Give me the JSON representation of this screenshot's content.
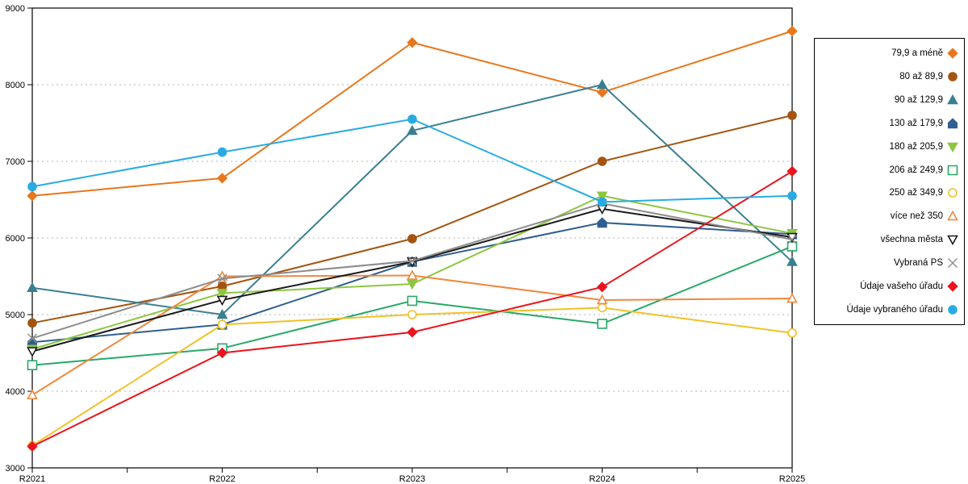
{
  "chart_data": {
    "type": "line",
    "title": "",
    "xlabel": "",
    "ylabel": "",
    "x_categories": [
      "R2021",
      "R2022",
      "R2023",
      "R2024",
      "R2025"
    ],
    "ylim": [
      3000,
      9000
    ],
    "y_ticks": [
      3000,
      4000,
      5000,
      6000,
      7000,
      8000,
      9000
    ],
    "grid": "horizontal-dashed",
    "grid_color": "#b5b5b5",
    "axis_color": "#000000",
    "legend_position": "right-outside",
    "series": [
      {
        "name": "79,9 a méně",
        "color": "#e8761b",
        "marker": "diamond",
        "filled": true,
        "values": [
          6550,
          6780,
          8550,
          7900,
          8700
        ]
      },
      {
        "name": "80 až 89,9",
        "color": "#a3540e",
        "marker": "circle",
        "filled": true,
        "values": [
          4890,
          5370,
          5990,
          7000,
          7600
        ]
      },
      {
        "name": "90 až 129,9",
        "color": "#3a7f91",
        "marker": "triangle-up",
        "filled": true,
        "values": [
          5350,
          5000,
          7400,
          8000,
          5690
        ]
      },
      {
        "name": "130 až 179,9",
        "color": "#2f5e8f",
        "marker": "pentagon",
        "filled": true,
        "values": [
          4640,
          4870,
          5690,
          6200,
          6050
        ]
      },
      {
        "name": "180 až 205,9",
        "color": "#8dc63f",
        "marker": "triangle-down",
        "filled": true,
        "values": [
          4550,
          5280,
          5400,
          6550,
          6060
        ]
      },
      {
        "name": "206 až 249,9",
        "color": "#27a967",
        "marker": "square",
        "filled": false,
        "values": [
          4340,
          4560,
          5180,
          4880,
          5890
        ]
      },
      {
        "name": "250 až 349,9",
        "color": "#f2c029",
        "marker": "circle",
        "filled": false,
        "values": [
          3290,
          4870,
          5000,
          5090,
          4760
        ]
      },
      {
        "name": "více než 350",
        "color": "#f0883e",
        "marker": "triangle-up",
        "filled": false,
        "values": [
          3950,
          5500,
          5510,
          5190,
          5210
        ]
      },
      {
        "name": "všechna města",
        "color": "#1a1a1a",
        "marker": "triangle-down",
        "filled": false,
        "values": [
          4520,
          5190,
          5690,
          6380,
          6010
        ]
      },
      {
        "name": "Vybraná PS",
        "color": "#8c8c8c",
        "marker": "x",
        "filled": false,
        "values": [
          4690,
          5470,
          5700,
          6450,
          5980
        ]
      },
      {
        "name": "Údaje vašeho úřadu",
        "color": "#e9141d",
        "marker": "diamond",
        "filled": true,
        "values": [
          3280,
          4500,
          4770,
          5360,
          6870
        ]
      },
      {
        "name": "Údaje vybraného úřadu",
        "color": "#29abe2",
        "marker": "circle",
        "filled": true,
        "values": [
          6670,
          7120,
          7550,
          6470,
          6550
        ]
      }
    ]
  }
}
